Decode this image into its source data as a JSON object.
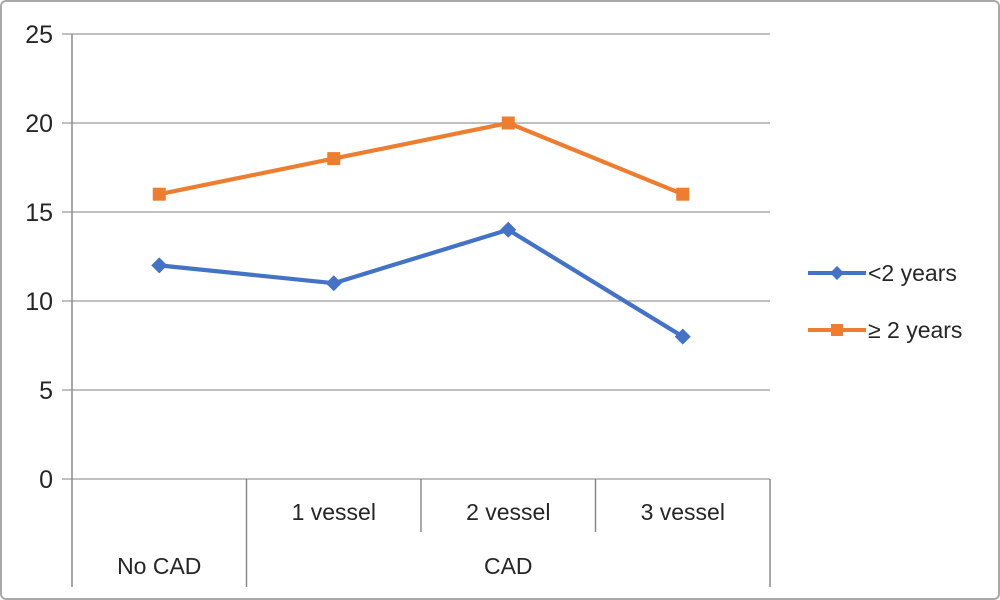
{
  "chart_data": {
    "type": "line",
    "categories": [
      "No CAD",
      "1 vessel",
      "2 vessel",
      "3 vessel"
    ],
    "x_axis": {
      "sub_labels": [
        "",
        "1 vessel",
        "2 vessel",
        "3 vessel"
      ],
      "group_labels": [
        {
          "label": "No CAD",
          "start": 0,
          "end": 0
        },
        {
          "label": "CAD",
          "start": 1,
          "end": 3
        }
      ]
    },
    "series": [
      {
        "name": "<2 years",
        "values": [
          12,
          11,
          14,
          8
        ],
        "color": "#4472C4",
        "marker": "diamond"
      },
      {
        "name": "≥ 2 years",
        "values": [
          16,
          18,
          20,
          16
        ],
        "color": "#ED7D31",
        "marker": "square"
      }
    ],
    "title": "",
    "xlabel": "",
    "ylabel": "",
    "ylim": [
      0,
      25
    ],
    "yticks": [
      0,
      5,
      10,
      15,
      20,
      25
    ],
    "grid": "horizontal-major",
    "legend_position": "right",
    "colors": {
      "gridline": "#9b9b9b",
      "axis": "#848484",
      "label": "#262626",
      "frame_border": "#a9a9a9",
      "background": "#ffffff"
    }
  }
}
